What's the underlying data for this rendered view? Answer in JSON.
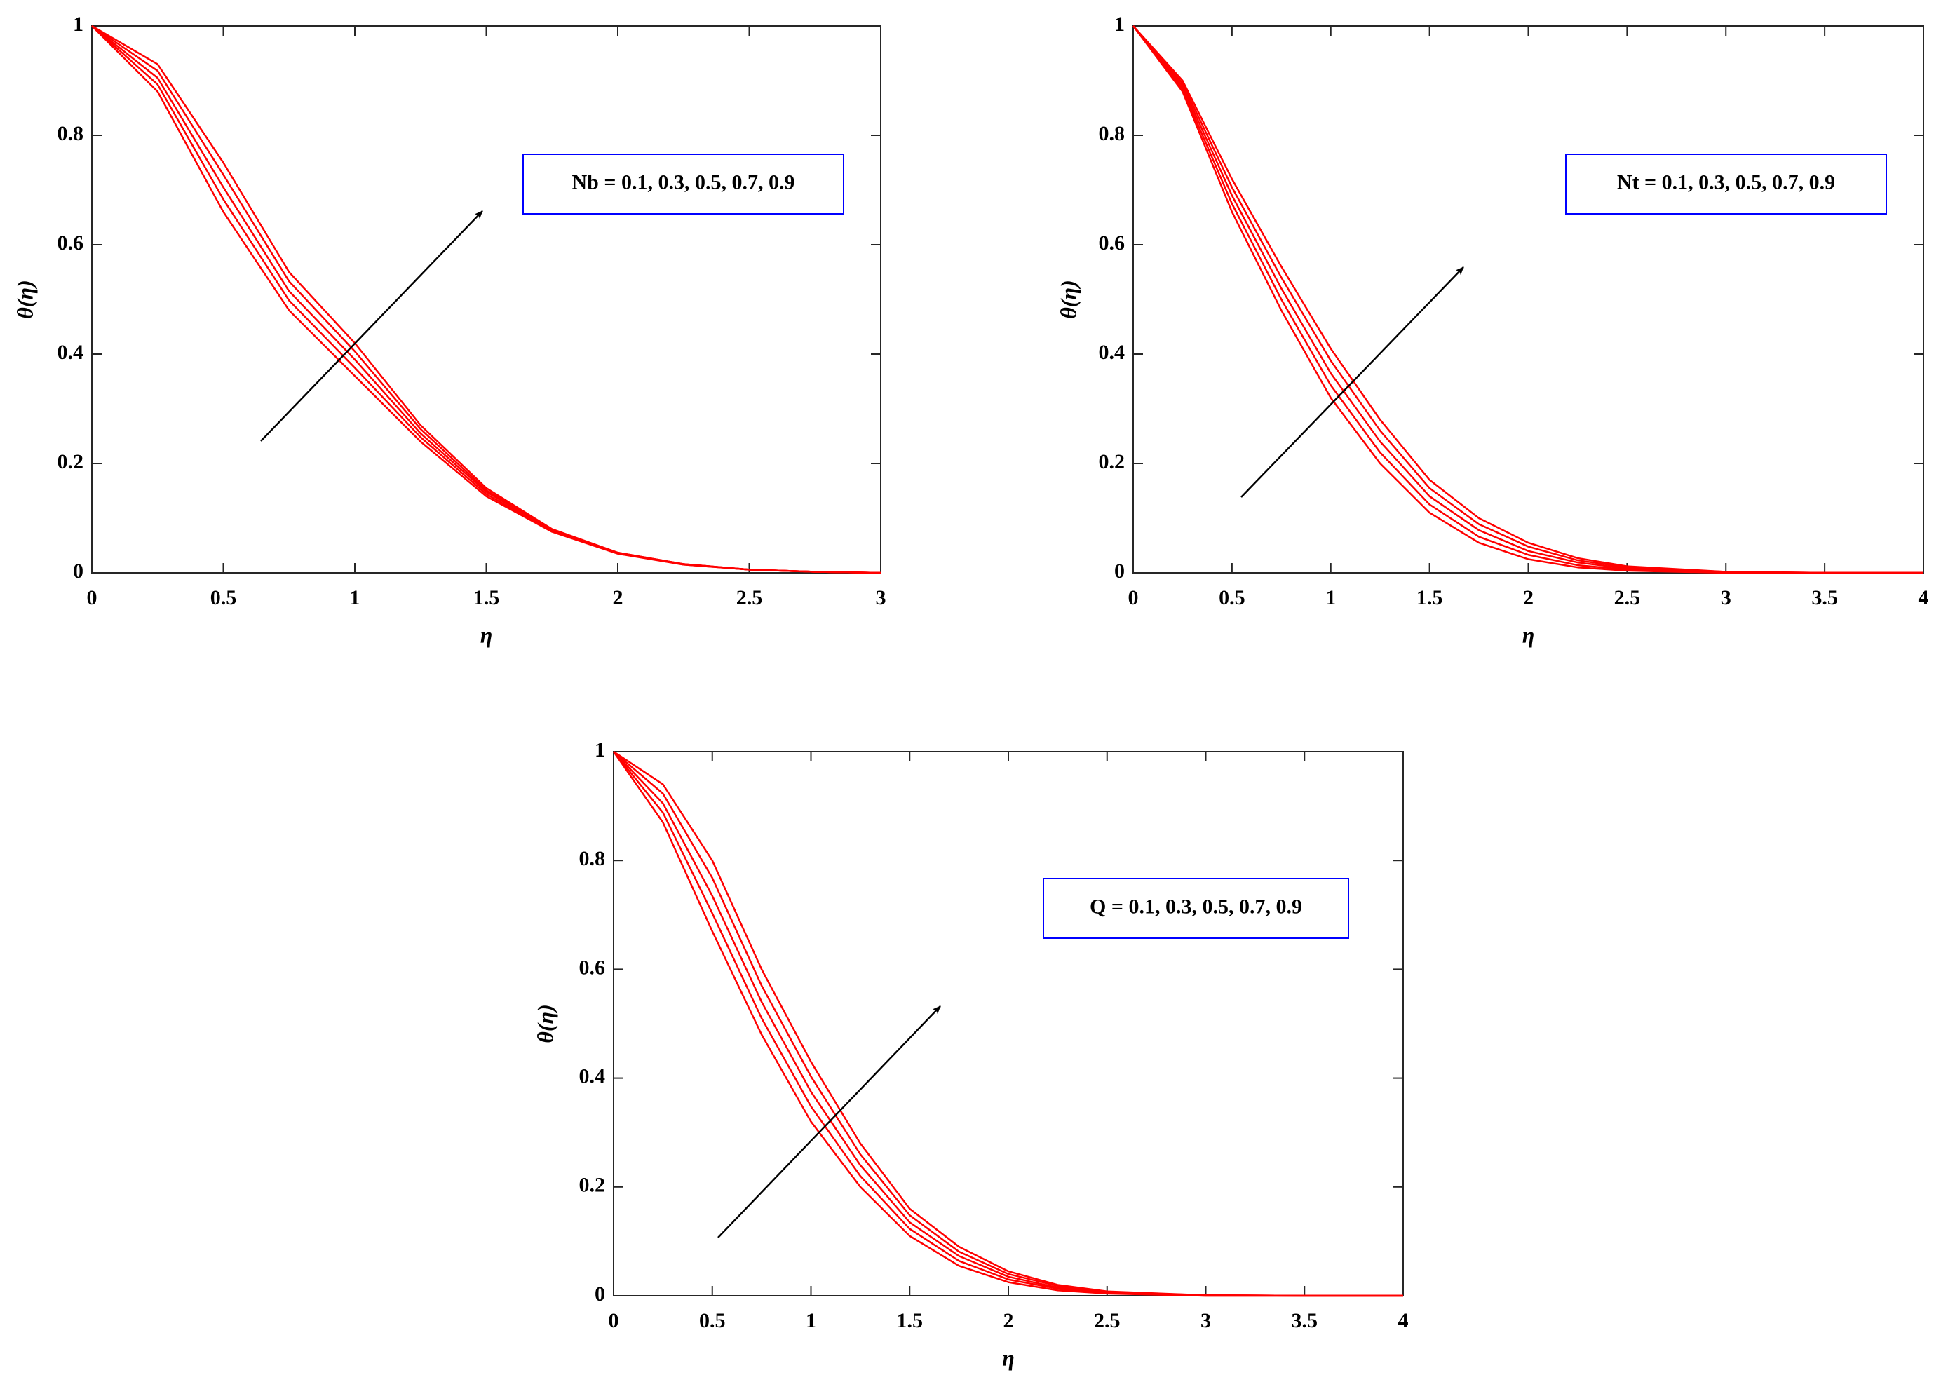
{
  "chart_data": [
    {
      "type": "line",
      "x_label": "η",
      "y_label": "θ(η)",
      "annotation": "Nb = 0.1, 0.3, 0.5, 0.7, 0.9",
      "x": [
        0,
        0.25,
        0.5,
        0.75,
        1,
        1.25,
        1.5,
        1.75,
        2,
        2.25,
        2.5,
        2.75,
        3
      ],
      "series": [
        {
          "color": "#ff0000",
          "values": [
            1,
            0.88,
            0.66,
            0.48,
            0.36,
            0.24,
            0.14,
            0.075,
            0.035,
            0.015,
            0.006,
            0.002,
            0
          ]
        },
        {
          "color": "#ff0000",
          "values": [
            1,
            0.893,
            0.683,
            0.498,
            0.375,
            0.248,
            0.144,
            0.076,
            0.036,
            0.015,
            0.006,
            0.002,
            0
          ]
        },
        {
          "color": "#ff0000",
          "values": [
            1,
            0.905,
            0.705,
            0.515,
            0.39,
            0.255,
            0.148,
            0.078,
            0.036,
            0.016,
            0.006,
            0.002,
            0
          ]
        },
        {
          "color": "#ff0000",
          "values": [
            1,
            0.918,
            0.728,
            0.533,
            0.405,
            0.263,
            0.151,
            0.079,
            0.037,
            0.016,
            0.006,
            0.002,
            0
          ]
        },
        {
          "color": "#ff0000",
          "values": [
            1,
            0.93,
            0.75,
            0.55,
            0.42,
            0.27,
            0.155,
            0.08,
            0.037,
            0.016,
            0.006,
            0.002,
            0
          ]
        }
      ],
      "xlim": [
        0,
        3
      ],
      "ylim": [
        0,
        1
      ],
      "xticks": [
        0,
        0.5,
        1,
        1.5,
        2,
        2.5,
        3
      ],
      "yticks": [
        0,
        0.2,
        0.4,
        0.6,
        0.8,
        1
      ]
    },
    {
      "type": "line",
      "x_label": "η",
      "y_label": "θ(η)",
      "annotation": "Nt = 0.1, 0.3, 0.5, 0.7, 0.9",
      "x": [
        0,
        0.25,
        0.5,
        0.75,
        1,
        1.25,
        1.5,
        1.75,
        2,
        2.25,
        2.5,
        3,
        3.5,
        4
      ],
      "series": [
        {
          "color": "#ff0000",
          "values": [
            1,
            0.88,
            0.66,
            0.48,
            0.32,
            0.2,
            0.11,
            0.055,
            0.025,
            0.01,
            0.004,
            0,
            0,
            0
          ]
        },
        {
          "color": "#ff0000",
          "values": [
            1,
            0.885,
            0.675,
            0.5,
            0.343,
            0.22,
            0.125,
            0.066,
            0.033,
            0.014,
            0.006,
            0.001,
            0,
            0
          ]
        },
        {
          "color": "#ff0000",
          "values": [
            1,
            0.89,
            0.69,
            0.52,
            0.365,
            0.24,
            0.14,
            0.078,
            0.04,
            0.019,
            0.008,
            0.001,
            0,
            0
          ]
        },
        {
          "color": "#ff0000",
          "values": [
            1,
            0.895,
            0.705,
            0.54,
            0.388,
            0.26,
            0.155,
            0.089,
            0.048,
            0.023,
            0.01,
            0.002,
            0,
            0
          ]
        },
        {
          "color": "#ff0000",
          "values": [
            1,
            0.9,
            0.72,
            0.56,
            0.41,
            0.28,
            0.17,
            0.1,
            0.055,
            0.027,
            0.012,
            0.002,
            0,
            0
          ]
        }
      ],
      "xlim": [
        0,
        4
      ],
      "ylim": [
        0,
        1
      ],
      "xticks": [
        0,
        0.5,
        1,
        1.5,
        2,
        2.5,
        3,
        3.5,
        4
      ],
      "yticks": [
        0,
        0.2,
        0.4,
        0.6,
        0.8,
        1
      ]
    },
    {
      "type": "line",
      "x_label": "η",
      "y_label": "θ(η)",
      "annotation": "Q = 0.1, 0.3, 0.5, 0.7, 0.9",
      "x": [
        0,
        0.25,
        0.5,
        0.75,
        1,
        1.25,
        1.5,
        1.75,
        2,
        2.25,
        2.5,
        3,
        3.5,
        4
      ],
      "series": [
        {
          "color": "#ff0000",
          "values": [
            1,
            0.87,
            0.67,
            0.48,
            0.32,
            0.2,
            0.11,
            0.055,
            0.025,
            0.01,
            0.004,
            0,
            0,
            0
          ]
        },
        {
          "color": "#ff0000",
          "values": [
            1,
            0.888,
            0.703,
            0.51,
            0.348,
            0.22,
            0.123,
            0.064,
            0.03,
            0.013,
            0.005,
            0,
            0,
            0
          ]
        },
        {
          "color": "#ff0000",
          "values": [
            1,
            0.905,
            0.735,
            0.54,
            0.375,
            0.24,
            0.135,
            0.073,
            0.035,
            0.015,
            0.006,
            0.001,
            0,
            0
          ]
        },
        {
          "color": "#ff0000",
          "values": [
            1,
            0.923,
            0.768,
            0.57,
            0.403,
            0.26,
            0.148,
            0.081,
            0.04,
            0.018,
            0.007,
            0.001,
            0,
            0
          ]
        },
        {
          "color": "#ff0000",
          "values": [
            1,
            0.94,
            0.8,
            0.6,
            0.43,
            0.28,
            0.16,
            0.09,
            0.045,
            0.02,
            0.008,
            0.001,
            0,
            0
          ]
        }
      ],
      "xlim": [
        0,
        4
      ],
      "ylim": [
        0,
        1
      ],
      "xticks": [
        0,
        0.5,
        1,
        1.5,
        2,
        2.5,
        3,
        3.5,
        4
      ],
      "yticks": [
        0,
        0.2,
        0.4,
        0.6,
        0.8,
        1
      ]
    }
  ]
}
